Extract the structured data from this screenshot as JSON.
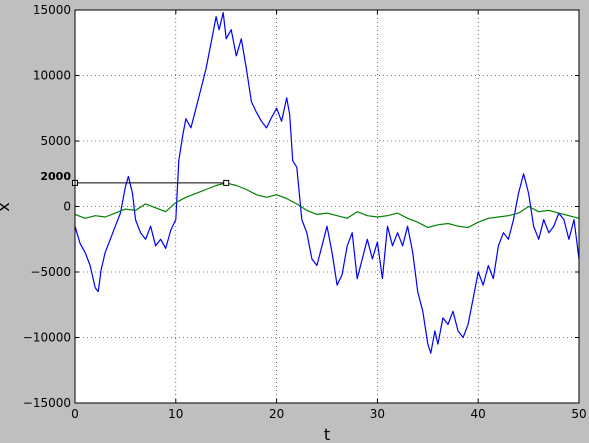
{
  "chart_data": {
    "type": "line",
    "title": "",
    "xlabel": "t",
    "ylabel": "x",
    "xlim": [
      0,
      50
    ],
    "ylim": [
      -15000,
      15000
    ],
    "grid": true,
    "xticks": [
      0,
      10,
      20,
      30,
      40,
      50
    ],
    "yticks": [
      -15000,
      -10000,
      -5000,
      0,
      5000,
      10000,
      15000
    ],
    "xtick_labels": [
      "0",
      "10",
      "20",
      "30",
      "40",
      "50"
    ],
    "ytick_labels": [
      "−15000",
      "−10000",
      "−5000",
      "0",
      "5000",
      "10000",
      "15000"
    ],
    "annotation": {
      "text": "2000",
      "line_y": 1800,
      "line_x": [
        0,
        15
      ],
      "marker_x": 15
    },
    "series": [
      {
        "color": "#0000ff",
        "x": [
          0,
          0.5,
          1,
          1.5,
          2,
          2.3,
          2.6,
          3,
          3.5,
          4,
          4.5,
          5,
          5.3,
          5.7,
          6,
          6.5,
          7,
          7.5,
          8,
          8.5,
          9,
          9.5,
          10,
          10.3,
          10.7,
          11,
          11.5,
          12,
          12.5,
          13,
          13.5,
          14,
          14.3,
          14.7,
          15,
          15.5,
          16,
          16.5,
          17,
          17.5,
          18,
          18.5,
          19,
          19.5,
          20,
          20.5,
          21,
          21.3,
          21.6,
          22,
          22.5,
          23,
          23.5,
          24,
          24.5,
          25,
          25.5,
          26,
          26.5,
          27,
          27.5,
          28,
          28.5,
          29,
          29.5,
          30,
          30.5,
          31,
          31.5,
          32,
          32.5,
          33,
          33.5,
          34,
          34.5,
          35,
          35.3,
          35.7,
          36,
          36.5,
          37,
          37.5,
          38,
          38.5,
          39,
          39.5,
          40,
          40.5,
          41,
          41.5,
          42,
          42.5,
          43,
          43.5,
          44,
          44.5,
          45,
          45.5,
          46,
          46.5,
          47,
          47.5,
          48,
          48.5,
          49,
          49.5,
          50
        ],
        "values": [
          -1500,
          -2800,
          -3500,
          -4500,
          -6200,
          -6500,
          -4800,
          -3500,
          -2500,
          -1500,
          -500,
          1500,
          2300,
          1000,
          -1000,
          -2000,
          -2500,
          -1500,
          -3000,
          -2500,
          -3200,
          -1800,
          -1000,
          3500,
          5500,
          6700,
          6000,
          7500,
          9000,
          10500,
          12500,
          14500,
          13500,
          14800,
          12800,
          13500,
          11500,
          12800,
          10500,
          8000,
          7200,
          6500,
          6000,
          6800,
          7500,
          6500,
          8300,
          7000,
          3500,
          3000,
          -1000,
          -2000,
          -4000,
          -4500,
          -3000,
          -1500,
          -3500,
          -6000,
          -5200,
          -3000,
          -2000,
          -5500,
          -4000,
          -2500,
          -4000,
          -2700,
          -5500,
          -1500,
          -3000,
          -2000,
          -3000,
          -1500,
          -3500,
          -6500,
          -8000,
          -10500,
          -11200,
          -9500,
          -10500,
          -8500,
          -9000,
          -8000,
          -9500,
          -10000,
          -9000,
          -7000,
          -5000,
          -6000,
          -4500,
          -5500,
          -3000,
          -2000,
          -2500,
          -1000,
          1000,
          2500,
          1000,
          -1500,
          -2500,
          -1000,
          -2000,
          -1500,
          -500,
          -1000,
          -2500,
          -1000,
          -4000
        ]
      },
      {
        "color": "#008000",
        "x": [
          0,
          1,
          2,
          3,
          4,
          5,
          6,
          7,
          8,
          9,
          10,
          11,
          12,
          13,
          14,
          15,
          16,
          17,
          18,
          19,
          20,
          21,
          22,
          23,
          24,
          25,
          26,
          27,
          28,
          29,
          30,
          31,
          32,
          33,
          34,
          35,
          36,
          37,
          38,
          39,
          40,
          41,
          42,
          43,
          44,
          45,
          46,
          47,
          48,
          49,
          50
        ],
        "values": [
          -600,
          -900,
          -700,
          -800,
          -500,
          -200,
          -300,
          200,
          -100,
          -400,
          300,
          700,
          1000,
          1300,
          1600,
          1800,
          1600,
          1300,
          900,
          700,
          900,
          600,
          200,
          -300,
          -600,
          -500,
          -700,
          -900,
          -400,
          -700,
          -800,
          -700,
          -500,
          -900,
          -1200,
          -1600,
          -1400,
          -1300,
          -1500,
          -1600,
          -1200,
          -900,
          -800,
          -700,
          -500,
          0,
          -400,
          -300,
          -500,
          -700,
          -900
        ]
      }
    ]
  }
}
